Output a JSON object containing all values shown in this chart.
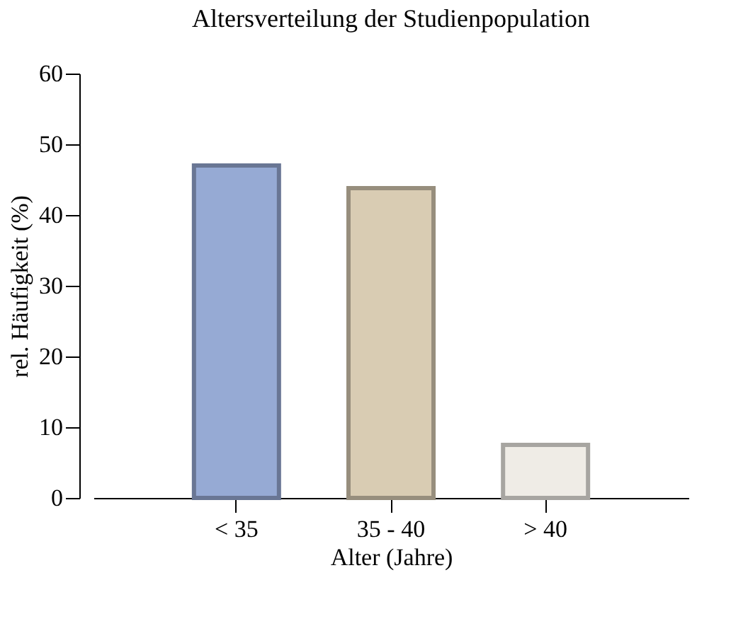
{
  "chart_data": {
    "type": "bar",
    "title": "Altersverteilung der Studienpopulation",
    "xlabel": "Alter (Jahre)",
    "ylabel": "rel. Häufigkeit (%)",
    "categories": [
      "< 35",
      "35 - 40",
      "> 40"
    ],
    "values": [
      47,
      43.8,
      7.5
    ],
    "colors": [
      "#96aad4",
      "#d9ccb3",
      "#efece6"
    ],
    "ylim": [
      0,
      60
    ],
    "yticks": [
      0,
      10,
      20,
      30,
      40,
      50,
      60
    ],
    "grid": false
  }
}
